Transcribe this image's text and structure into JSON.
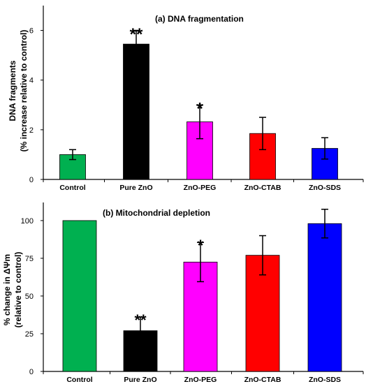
{
  "chart_data": [
    {
      "type": "bar",
      "title": "(a) DNA fragmentation",
      "xlabel": "",
      "ylabel_lines": [
        "DNA fragments",
        "(% increase relative to control)"
      ],
      "categories": [
        "Control",
        "Pure ZnO",
        "ZnO-PEG",
        "ZnO-CTAB",
        "ZnO-SDS"
      ],
      "values": [
        1.0,
        5.45,
        2.32,
        1.85,
        1.25
      ],
      "errors": [
        0.2,
        0.55,
        0.68,
        0.65,
        0.43
      ],
      "significance": [
        "",
        "**",
        "*",
        "",
        ""
      ],
      "colors": [
        "#00b050",
        "#000000",
        "#ff00ff",
        "#ff0000",
        "#0000ff"
      ],
      "ylim": [
        0,
        7
      ],
      "yticks": [
        0,
        2,
        4,
        6
      ],
      "grid": false
    },
    {
      "type": "bar",
      "title": "(b) Mitochondrial depletion",
      "xlabel": "",
      "ylabel_lines": [
        "% change in ΔΨm",
        "(relative to control)"
      ],
      "categories": [
        "Control",
        "Pure ZnO",
        "ZnO-PEG",
        "ZnO-CTAB",
        "ZnO-SDS"
      ],
      "values": [
        100,
        27,
        72.5,
        77,
        98
      ],
      "errors": [
        0,
        9,
        13,
        13,
        9.5
      ],
      "significance": [
        "",
        "**",
        "*",
        "",
        ""
      ],
      "colors": [
        "#00b050",
        "#000000",
        "#ff00ff",
        "#ff0000",
        "#0000ff"
      ],
      "ylim": [
        0,
        112
      ],
      "yticks": [
        0,
        25,
        50,
        75,
        100
      ],
      "grid": false
    }
  ]
}
